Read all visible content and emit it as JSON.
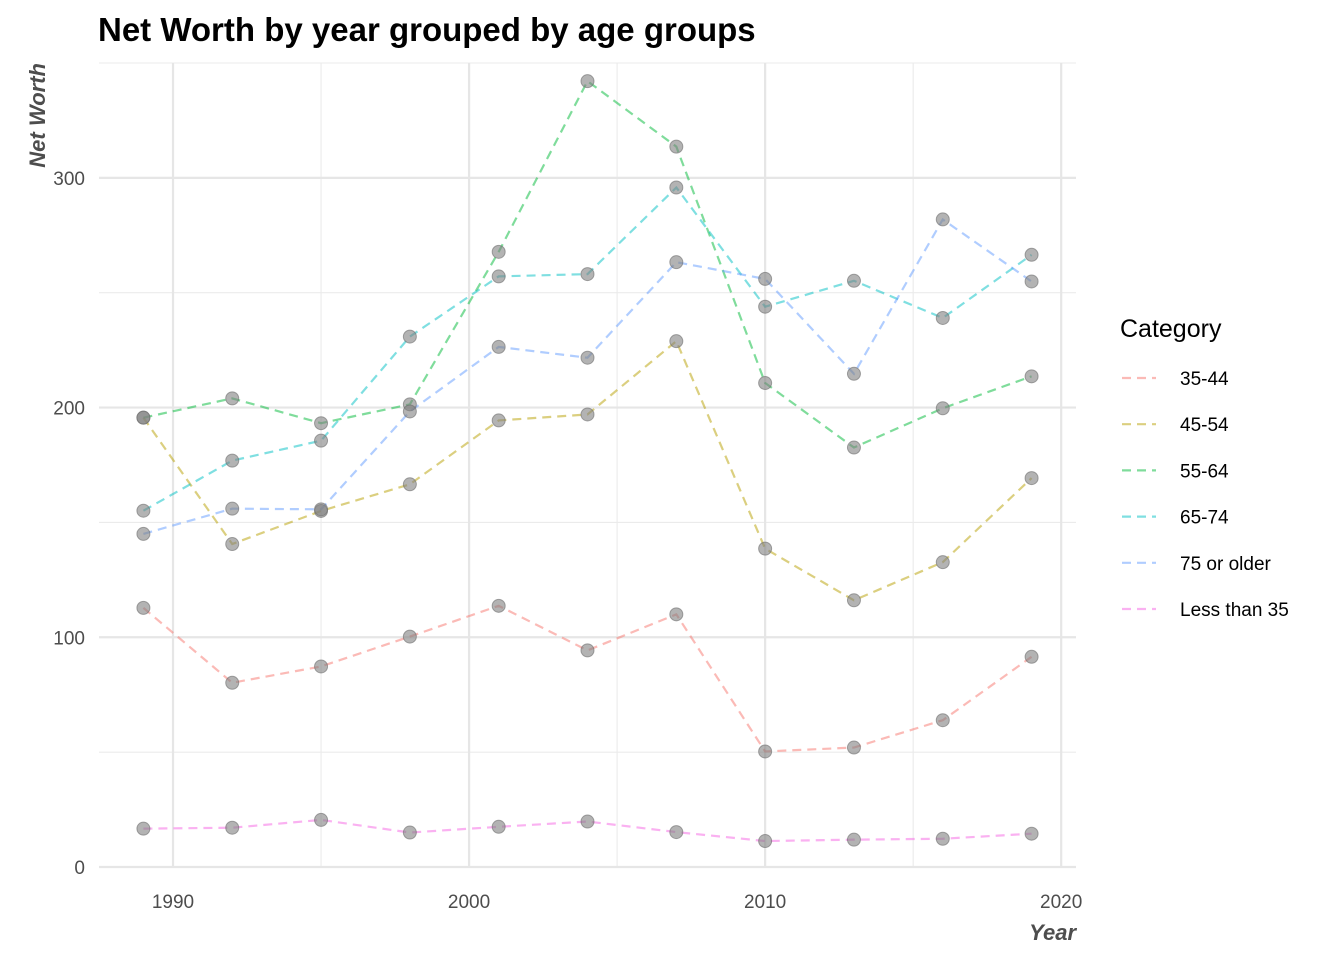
{
  "chart_data": {
    "type": "line",
    "title": "Net Worth by year grouped by age groups",
    "xlabel": "Year",
    "ylabel": "Net Worth",
    "xlim": [
      1987.5,
      2020.5
    ],
    "ylim": [
      0,
      350
    ],
    "x_ticks": [
      1990,
      2000,
      2010,
      2020
    ],
    "y_ticks": [
      0,
      100,
      200,
      300
    ],
    "grid": true,
    "line_style": "dashed",
    "point_color": "#808080",
    "legend": {
      "title": "Category",
      "position": "right"
    },
    "x": [
      1989,
      1992,
      1995,
      1998,
      2001,
      2004,
      2007,
      2010,
      2013,
      2016,
      2019
    ],
    "series": [
      {
        "name": "35-44",
        "color": "#F8766D",
        "values": [
          112.8,
          80.2,
          87.3,
          100.3,
          113.7,
          94.3,
          110.0,
          50.3,
          52.0,
          63.9,
          91.5
        ]
      },
      {
        "name": "45-54",
        "color": "#B79F00",
        "values": [
          195.6,
          140.6,
          155.0,
          166.6,
          194.4,
          197.0,
          228.9,
          138.6,
          116.1,
          132.7,
          169.3
        ]
      },
      {
        "name": "55-64",
        "color": "#00BA38",
        "values": [
          195.6,
          204.0,
          193.2,
          201.4,
          267.8,
          342.1,
          313.6,
          210.7,
          182.6,
          199.7,
          213.6
        ]
      },
      {
        "name": "65-74",
        "color": "#00BFC4",
        "values": [
          155.1,
          176.9,
          185.6,
          230.9,
          257.1,
          258.1,
          295.8,
          243.9,
          255.2,
          239.0,
          266.5
        ]
      },
      {
        "name": "75 or older",
        "color": "#619CFF",
        "values": [
          145.0,
          156.0,
          155.7,
          198.3,
          226.4,
          221.7,
          263.3,
          256.0,
          214.7,
          281.9,
          254.9
        ]
      },
      {
        "name": "Less than 35",
        "color": "#F564E3",
        "values": [
          16.7,
          17.1,
          20.5,
          15.0,
          17.5,
          19.8,
          15.2,
          11.3,
          11.9,
          12.3,
          14.5
        ]
      }
    ]
  }
}
